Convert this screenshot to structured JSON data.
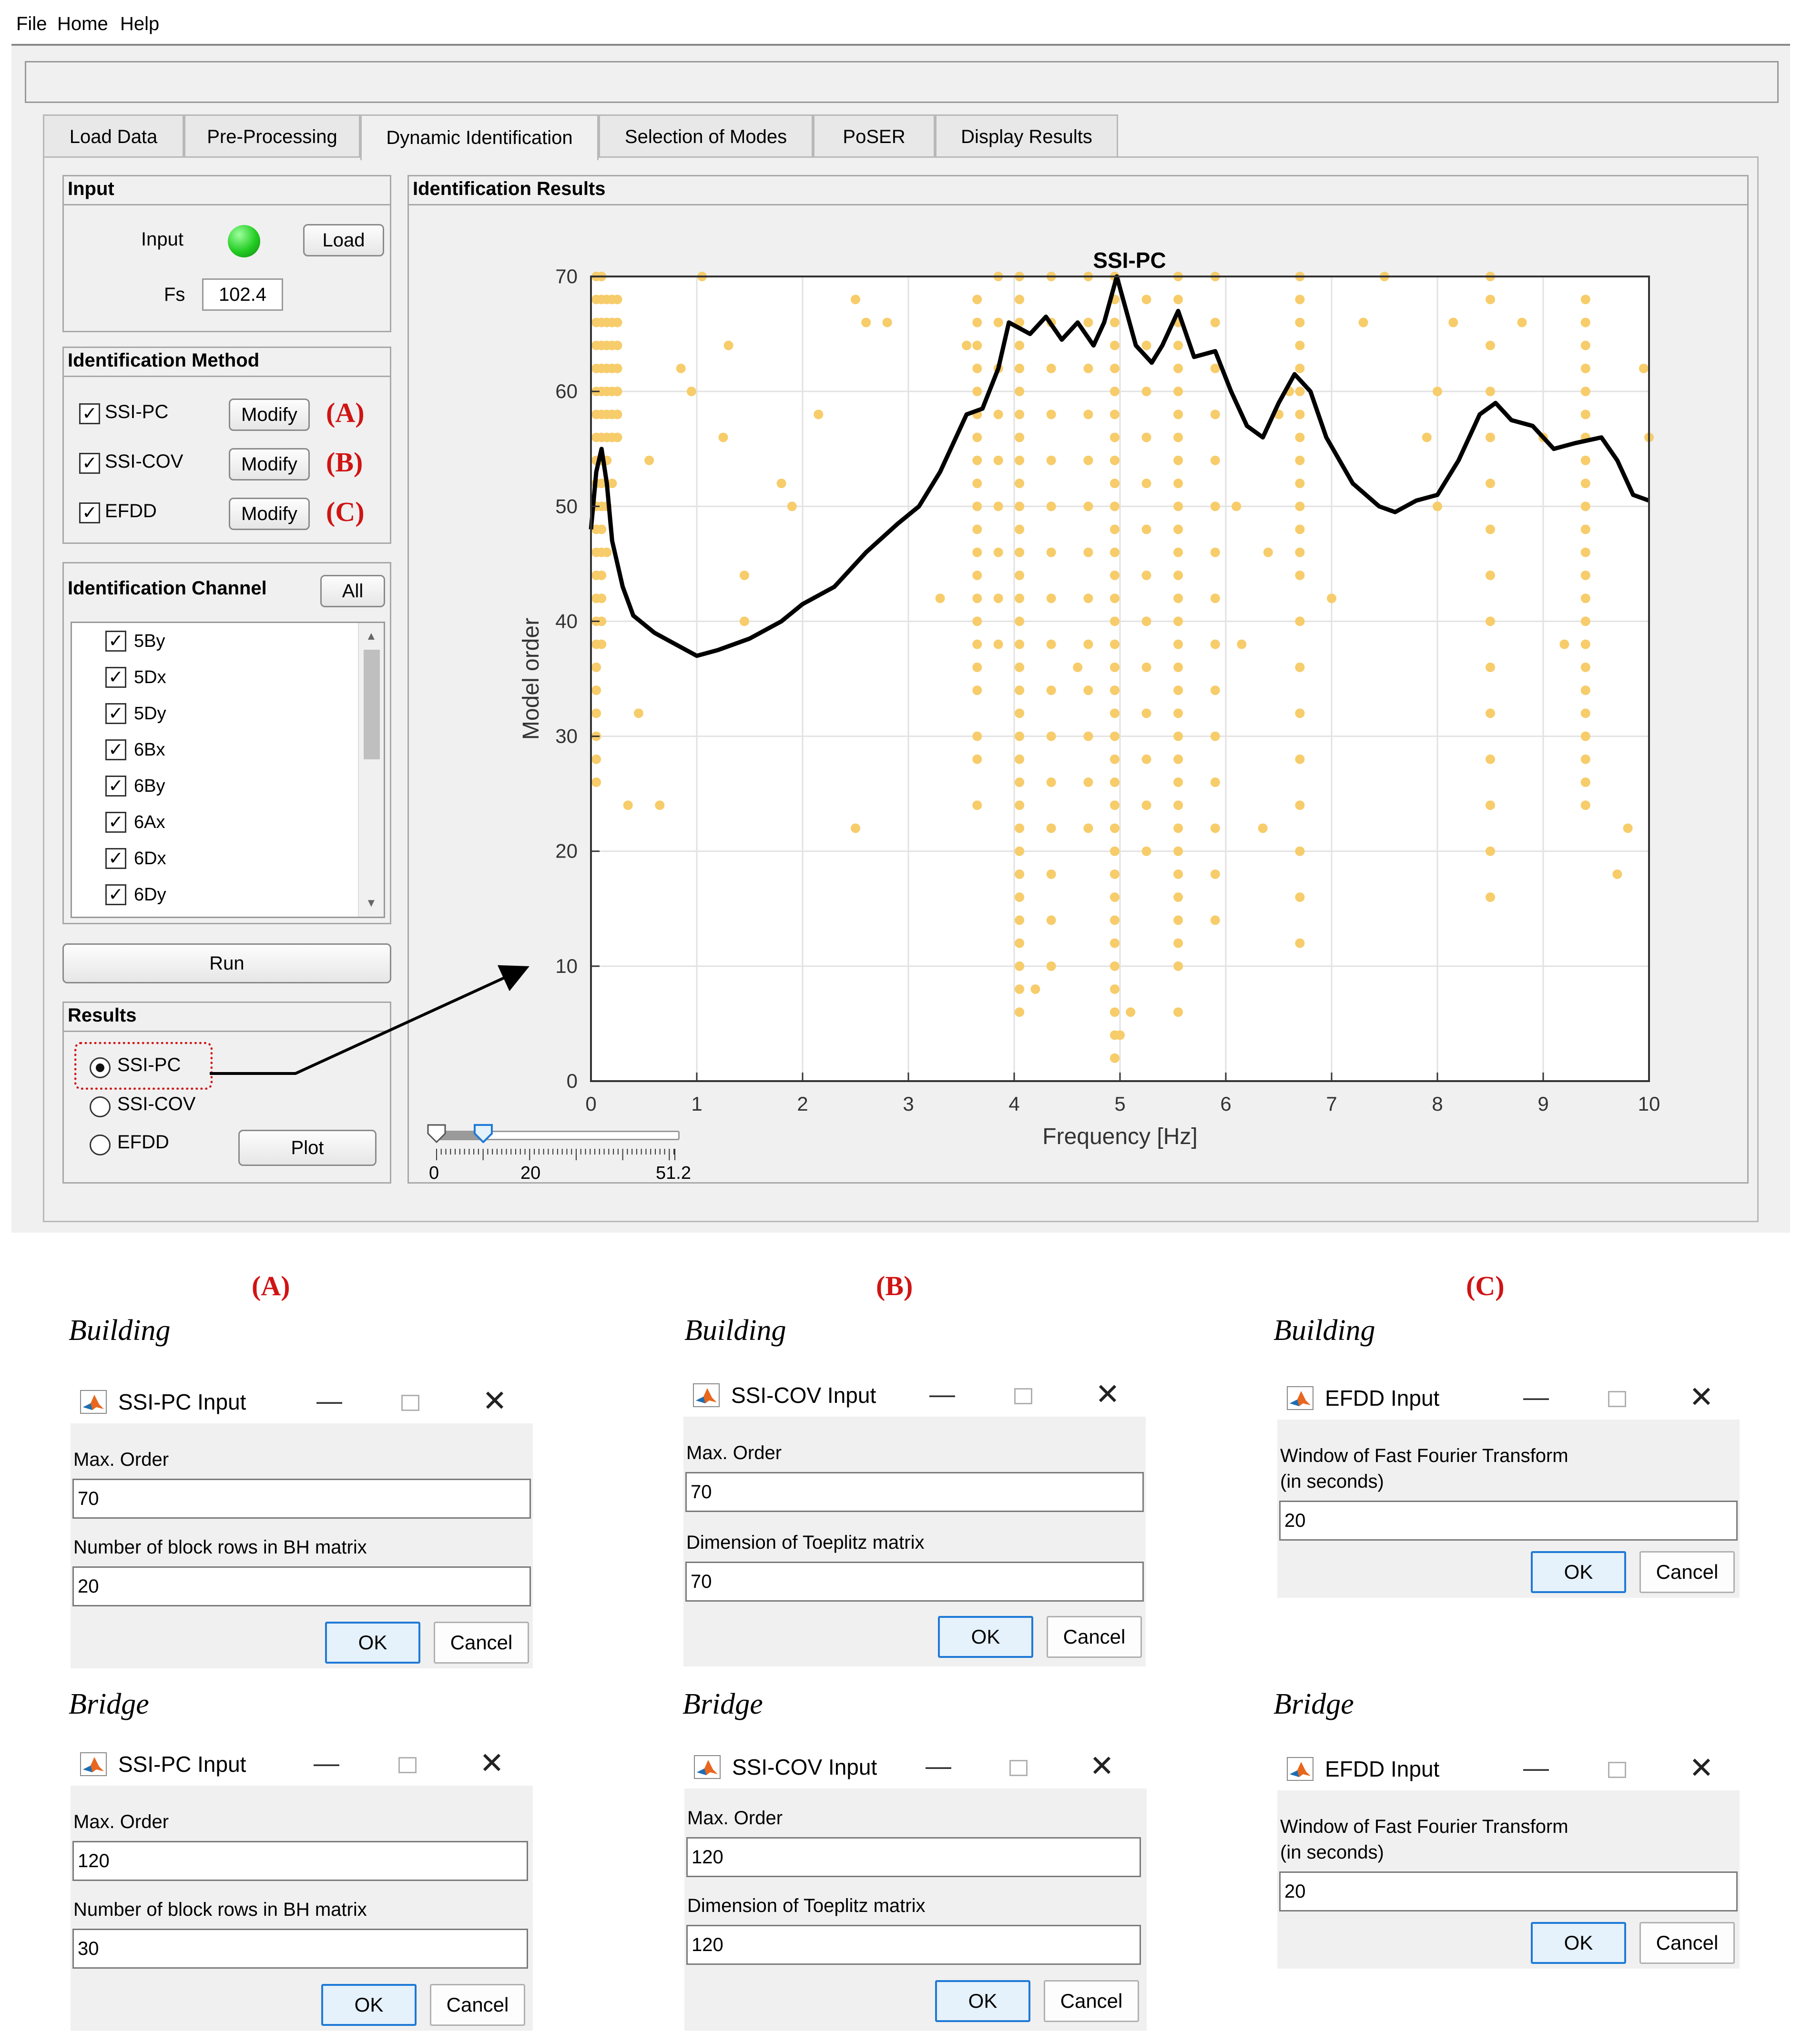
{
  "menu": [
    "File",
    "Home",
    "Help"
  ],
  "tabs": [
    "Load Data",
    "Pre-Processing",
    "Dynamic Identification",
    "Selection of Modes",
    "PoSER",
    "Display Results"
  ],
  "input_panel": {
    "title": "Input",
    "input_label": "Input",
    "status_color": "#22cc22",
    "load_label": "Load",
    "fs_label": "Fs",
    "fs_value": "102.4"
  },
  "method_panel": {
    "title": "Identification Method",
    "methods": [
      {
        "label": "SSI-PC",
        "checked": true,
        "modify": "Modify",
        "marker": "(A)"
      },
      {
        "label": "SSI-COV",
        "checked": true,
        "modify": "Modify",
        "marker": "(B)"
      },
      {
        "label": "EFDD",
        "checked": true,
        "modify": "Modify",
        "marker": "(C)"
      }
    ]
  },
  "channel_panel": {
    "title": "Identification Channel",
    "all_label": "All",
    "channels": [
      "5By",
      "5Dx",
      "5Dy",
      "6Bx",
      "6By",
      "6Ax",
      "6Dx",
      "6Dy"
    ]
  },
  "run_label": "Run",
  "results_panel": {
    "title": "Results",
    "options": [
      "SSI-PC",
      "SSI-COV",
      "EFDD"
    ],
    "selected": 0,
    "plot_label": "Plot"
  },
  "id_results": {
    "title": "Identification Results"
  },
  "slider": {
    "min_label": "0",
    "mid_label": "20",
    "max_label": "51.2",
    "lower": 0,
    "upper": 10,
    "max": 51.2
  },
  "chart_data": {
    "type": "scatter",
    "title": "SSI-PC",
    "xlabel": "Frequency [Hz]",
    "ylabel": "Model order",
    "xlim": [
      0,
      10
    ],
    "ylim": [
      0,
      70
    ],
    "xticks": [
      "0",
      "1",
      "2",
      "3",
      "4",
      "5",
      "6",
      "7",
      "8",
      "9",
      "10"
    ],
    "yticks": [
      "0",
      "10",
      "20",
      "30",
      "40",
      "50",
      "60",
      "70"
    ],
    "grid": true,
    "point_color": "#f7cc6a",
    "line_color": "#000000",
    "columns": [
      {
        "x": 0.05,
        "orders": [
          26,
          28,
          30,
          32,
          34,
          36,
          38,
          40,
          42,
          44,
          46,
          48,
          50,
          52,
          54,
          56,
          58,
          60,
          62,
          64,
          66,
          68,
          70
        ]
      },
      {
        "x": 0.1,
        "orders": [
          38,
          40,
          42,
          44,
          46,
          48,
          50,
          52,
          54,
          56,
          58,
          60,
          62,
          64,
          66,
          68,
          70
        ]
      },
      {
        "x": 0.15,
        "orders": [
          46,
          50,
          54,
          56,
          58,
          60,
          62,
          64,
          66,
          68
        ]
      },
      {
        "x": 0.2,
        "orders": [
          52,
          56,
          58,
          60,
          62,
          64,
          66,
          68
        ]
      },
      {
        "x": 0.25,
        "orders": [
          56,
          58,
          60,
          62,
          64,
          66,
          68
        ]
      },
      {
        "x": 3.65,
        "orders": [
          24,
          28,
          30,
          34,
          36,
          38,
          40,
          42,
          44,
          46,
          48,
          50,
          52,
          54,
          56,
          58,
          60,
          62,
          64,
          66,
          68
        ]
      },
      {
        "x": 3.85,
        "orders": [
          38,
          42,
          46,
          50,
          54,
          58,
          62,
          66,
          70
        ]
      },
      {
        "x": 4.05,
        "orders": [
          6,
          8,
          10,
          12,
          14,
          16,
          18,
          20,
          22,
          24,
          26,
          28,
          30,
          32,
          34,
          36,
          38,
          40,
          42,
          44,
          46,
          48,
          50,
          52,
          54,
          56,
          58,
          60,
          62,
          64,
          66,
          68,
          70
        ]
      },
      {
        "x": 4.35,
        "orders": [
          10,
          14,
          18,
          22,
          26,
          30,
          34,
          38,
          42,
          46,
          50,
          54,
          58,
          62,
          66,
          70
        ]
      },
      {
        "x": 4.7,
        "orders": [
          22,
          26,
          30,
          34,
          38,
          42,
          46,
          50,
          54,
          58,
          62,
          66,
          70
        ]
      },
      {
        "x": 4.95,
        "orders": [
          2,
          4,
          6,
          8,
          10,
          12,
          14,
          16,
          18,
          20,
          22,
          24,
          26,
          28,
          30,
          32,
          34,
          36,
          38,
          40,
          42,
          44,
          46,
          48,
          50,
          52,
          54,
          56,
          58,
          60,
          62,
          64,
          66,
          68,
          70
        ]
      },
      {
        "x": 5.25,
        "orders": [
          20,
          24,
          28,
          32,
          36,
          40,
          44,
          48,
          52,
          56,
          60,
          64,
          68
        ]
      },
      {
        "x": 5.55,
        "orders": [
          6,
          10,
          12,
          14,
          16,
          18,
          20,
          22,
          24,
          26,
          28,
          30,
          32,
          34,
          36,
          38,
          40,
          42,
          44,
          46,
          48,
          50,
          52,
          54,
          56,
          58,
          60,
          62,
          64,
          66,
          68,
          70
        ]
      },
      {
        "x": 5.9,
        "orders": [
          14,
          18,
          22,
          26,
          30,
          34,
          38,
          42,
          46,
          50,
          54,
          58,
          62,
          66,
          70
        ]
      },
      {
        "x": 6.7,
        "orders": [
          12,
          16,
          20,
          24,
          28,
          32,
          36,
          40,
          44,
          46,
          48,
          50,
          52,
          54,
          56,
          58,
          60,
          62,
          64,
          66,
          68,
          70
        ]
      },
      {
        "x": 8.5,
        "orders": [
          16,
          20,
          24,
          28,
          32,
          36,
          40,
          44,
          48,
          52,
          56,
          60,
          64,
          68,
          70
        ]
      },
      {
        "x": 9.4,
        "orders": [
          24,
          26,
          28,
          30,
          32,
          34,
          36,
          38,
          40,
          42,
          44,
          46,
          48,
          50,
          52,
          54,
          56,
          58,
          60,
          62,
          64,
          66,
          68
        ]
      }
    ],
    "scattered_points": [
      [
        0.35,
        24
      ],
      [
        0.45,
        32
      ],
      [
        0.55,
        54
      ],
      [
        0.65,
        24
      ],
      [
        0.85,
        62
      ],
      [
        0.95,
        60
      ],
      [
        1.05,
        70
      ],
      [
        1.25,
        56
      ],
      [
        1.3,
        64
      ],
      [
        1.45,
        44
      ],
      [
        1.45,
        40
      ],
      [
        1.8,
        52
      ],
      [
        1.9,
        50
      ],
      [
        2.15,
        58
      ],
      [
        2.5,
        22
      ],
      [
        2.5,
        68
      ],
      [
        2.6,
        66
      ],
      [
        2.8,
        66
      ],
      [
        3.3,
        42
      ],
      [
        3.55,
        64
      ],
      [
        4.2,
        8
      ],
      [
        4.6,
        36
      ],
      [
        5.1,
        6
      ],
      [
        5.0,
        4
      ],
      [
        6.1,
        50
      ],
      [
        6.15,
        38
      ],
      [
        6.35,
        22
      ],
      [
        6.4,
        46
      ],
      [
        6.5,
        58
      ],
      [
        6.6,
        60
      ],
      [
        7.0,
        42
      ],
      [
        7.3,
        66
      ],
      [
        7.5,
        70
      ],
      [
        7.9,
        56
      ],
      [
        8.0,
        60
      ],
      [
        8.0,
        50
      ],
      [
        8.15,
        66
      ],
      [
        8.8,
        66
      ],
      [
        9.0,
        56
      ],
      [
        9.2,
        38
      ],
      [
        9.7,
        18
      ],
      [
        9.8,
        22
      ],
      [
        9.95,
        62
      ],
      [
        10.0,
        56
      ]
    ],
    "curve": [
      [
        0.0,
        48
      ],
      [
        0.05,
        53
      ],
      [
        0.1,
        55
      ],
      [
        0.15,
        52
      ],
      [
        0.2,
        47
      ],
      [
        0.3,
        43
      ],
      [
        0.4,
        40.5
      ],
      [
        0.6,
        39
      ],
      [
        0.8,
        38
      ],
      [
        1.0,
        37
      ],
      [
        1.2,
        37.5
      ],
      [
        1.5,
        38.5
      ],
      [
        1.8,
        40
      ],
      [
        2.0,
        41.5
      ],
      [
        2.3,
        43
      ],
      [
        2.6,
        46
      ],
      [
        2.9,
        48.5
      ],
      [
        3.1,
        50
      ],
      [
        3.3,
        53
      ],
      [
        3.45,
        56
      ],
      [
        3.55,
        58
      ],
      [
        3.7,
        58.5
      ],
      [
        3.85,
        62
      ],
      [
        3.95,
        66
      ],
      [
        4.15,
        65
      ],
      [
        4.3,
        66.5
      ],
      [
        4.45,
        64.5
      ],
      [
        4.6,
        66
      ],
      [
        4.75,
        64
      ],
      [
        4.85,
        66
      ],
      [
        4.97,
        70
      ],
      [
        5.15,
        64
      ],
      [
        5.3,
        62.5
      ],
      [
        5.4,
        64
      ],
      [
        5.55,
        67
      ],
      [
        5.7,
        63
      ],
      [
        5.9,
        63.5
      ],
      [
        6.05,
        60
      ],
      [
        6.2,
        57
      ],
      [
        6.35,
        56
      ],
      [
        6.5,
        59
      ],
      [
        6.65,
        61.5
      ],
      [
        6.8,
        60
      ],
      [
        6.95,
        56
      ],
      [
        7.2,
        52
      ],
      [
        7.45,
        50
      ],
      [
        7.6,
        49.5
      ],
      [
        7.8,
        50.5
      ],
      [
        8.0,
        51
      ],
      [
        8.2,
        54
      ],
      [
        8.4,
        58
      ],
      [
        8.55,
        59
      ],
      [
        8.7,
        57.5
      ],
      [
        8.9,
        57
      ],
      [
        9.1,
        55
      ],
      [
        9.3,
        55.5
      ],
      [
        9.55,
        56
      ],
      [
        9.7,
        54
      ],
      [
        9.85,
        51
      ],
      [
        10.0,
        50.5
      ]
    ]
  },
  "dialog_letters": [
    "(A)",
    "(B)",
    "(C)"
  ],
  "dialogs": [
    {
      "caption": "Building",
      "title": "SSI-PC Input",
      "fields": [
        {
          "label": "Max. Order",
          "value": "70"
        },
        {
          "label": "Number of block rows in BH matrix",
          "value": "20"
        }
      ],
      "ok": "OK",
      "cancel": "Cancel"
    },
    {
      "caption": "Building",
      "title": "SSI-COV Input",
      "fields": [
        {
          "label": "Max. Order",
          "value": "70"
        },
        {
          "label": "Dimension of Toeplitz matrix",
          "value": "70"
        }
      ],
      "ok": "OK",
      "cancel": "Cancel"
    },
    {
      "caption": "Building",
      "title": "EFDD Input",
      "fields": [
        {
          "label": "Window of Fast Fourier Transform",
          "label2": "(in seconds)",
          "value": "20"
        }
      ],
      "ok": "OK",
      "cancel": "Cancel"
    },
    {
      "caption": "Bridge",
      "title": "SSI-PC Input",
      "fields": [
        {
          "label": "Max. Order",
          "value": "120"
        },
        {
          "label": "Number of block rows in BH matrix",
          "value": "30"
        }
      ],
      "ok": "OK",
      "cancel": "Cancel"
    },
    {
      "caption": "Bridge",
      "title": "SSI-COV Input",
      "fields": [
        {
          "label": "Max. Order",
          "value": "120"
        },
        {
          "label": "Dimension of Toeplitz matrix",
          "value": "120"
        }
      ],
      "ok": "OK",
      "cancel": "Cancel"
    },
    {
      "caption": "Bridge",
      "title": "EFDD Input",
      "fields": [
        {
          "label": "Window of Fast Fourier Transform",
          "label2": "(in seconds)",
          "value": "20"
        }
      ],
      "ok": "OK",
      "cancel": "Cancel"
    }
  ]
}
